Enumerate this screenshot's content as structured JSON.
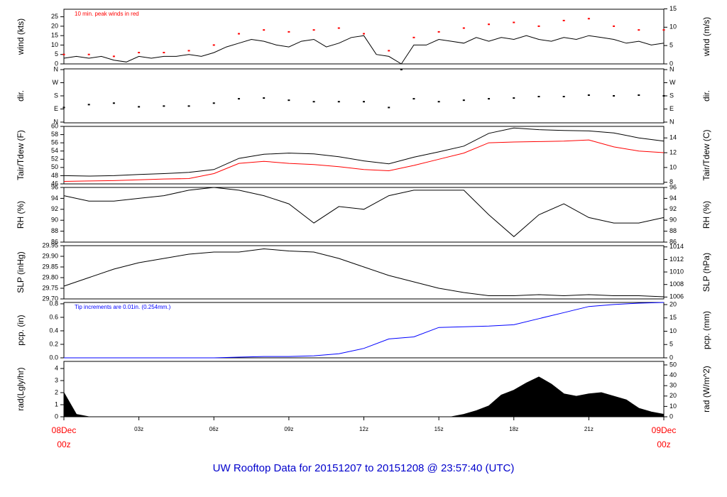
{
  "title": "UW Rooftop Data for 20151207  to  20151208 @ 23:57:40  (UTC)",
  "chart_data": [
    {
      "type": "line",
      "ylabel": "wind (kts)",
      "y2label": "wind (m/s)",
      "annotation": "10 min. peak winds in red",
      "xlim": [
        0,
        24
      ],
      "x": [
        0,
        0.5,
        1,
        1.5,
        2,
        2.5,
        3,
        3.5,
        4,
        4.5,
        5,
        5.5,
        6,
        6.5,
        7,
        7.5,
        8,
        8.5,
        9,
        9.5,
        10,
        10.5,
        11,
        11.5,
        12,
        12.5,
        13,
        13.5,
        14,
        14.5,
        15,
        15.5,
        16,
        16.5,
        17,
        17.5,
        18,
        18.5,
        19,
        19.5,
        20,
        20.5,
        21,
        21.5,
        22,
        22.5,
        23,
        23.5,
        24
      ],
      "ylim": [
        0,
        29
      ],
      "yticks": [
        0,
        5,
        10,
        15,
        20,
        25
      ],
      "y2lim": [
        0,
        14.9
      ],
      "y2ticks": [
        0,
        5,
        10,
        15
      ],
      "series": [
        {
          "color": "#000000",
          "mark": "line",
          "values": [
            3,
            4,
            3,
            4,
            2,
            1,
            4,
            3,
            4,
            4,
            5,
            4,
            6,
            9,
            11,
            13,
            12,
            10,
            9,
            12,
            13,
            9,
            11,
            14,
            15,
            5,
            4,
            0,
            10,
            10,
            13,
            12,
            11,
            14,
            12,
            14,
            13,
            15,
            13,
            12,
            14,
            13,
            15,
            14,
            13,
            11,
            12,
            10,
            11
          ]
        },
        {
          "color": "#ff0000",
          "mark": "points",
          "x": [
            0,
            1,
            2,
            3,
            4,
            5,
            6,
            7,
            8,
            9,
            10,
            11,
            12,
            13,
            14,
            15,
            16,
            17,
            18,
            19,
            20,
            21,
            22,
            23,
            24
          ],
          "values": [
            5,
            5,
            4,
            6,
            6,
            7,
            10,
            16,
            18,
            17,
            18,
            19,
            16,
            7,
            14,
            17,
            19,
            21,
            22,
            20,
            23,
            24,
            20,
            18,
            18
          ]
        }
      ]
    },
    {
      "type": "scatter",
      "ylabel": "dir.",
      "y2label": "dir.",
      "xlim": [
        0,
        24
      ],
      "x": [
        0,
        1,
        2,
        3,
        4,
        5,
        6,
        7,
        8,
        9,
        10,
        11,
        12,
        13,
        13.5,
        14,
        15,
        16,
        17,
        18,
        19,
        20,
        21,
        22,
        23,
        24
      ],
      "ylim": [
        -5,
        365
      ],
      "yticks": [
        {
          "value": 0,
          "label": "N"
        },
        {
          "value": 90,
          "label": "E"
        },
        {
          "value": 180,
          "label": "S"
        },
        {
          "value": 270,
          "label": "W"
        },
        {
          "value": 360,
          "label": "N"
        }
      ],
      "y2lim": [
        -5,
        365
      ],
      "y2ticks": [
        {
          "value": 0,
          "label": "N"
        },
        {
          "value": 90,
          "label": "E"
        },
        {
          "value": 180,
          "label": "S"
        },
        {
          "value": 270,
          "label": "W"
        },
        {
          "value": 360,
          "label": "N"
        }
      ],
      "series": [
        {
          "color": "#000000",
          "mark": "points",
          "values": [
            100,
            120,
            130,
            105,
            110,
            110,
            130,
            160,
            165,
            150,
            140,
            140,
            140,
            100,
            360,
            160,
            140,
            150,
            160,
            165,
            175,
            175,
            185,
            180,
            185,
            180
          ]
        }
      ]
    },
    {
      "type": "line",
      "ylabel": "Tair/Tdew (F)",
      "y2label": "Tair/Tdew (C)",
      "xlim": [
        0,
        24
      ],
      "x": [
        0,
        1,
        2,
        3,
        4,
        5,
        6,
        7,
        8,
        9,
        10,
        11,
        12,
        13,
        14,
        15,
        16,
        17,
        18,
        19,
        20,
        21,
        22,
        23,
        24
      ],
      "ylim": [
        46,
        60
      ],
      "yticks": [
        46,
        48,
        50,
        52,
        54,
        56,
        58,
        60
      ],
      "y2lim": [
        7.78,
        15.56
      ],
      "y2ticks": [
        8,
        10,
        12,
        14
      ],
      "series": [
        {
          "color": "#000000",
          "mark": "line",
          "values": [
            48,
            47.9,
            48,
            48.3,
            48.5,
            48.8,
            49.5,
            52.2,
            53.2,
            53.5,
            53.3,
            52.6,
            51.6,
            50.9,
            52.5,
            53.8,
            55.2,
            58.3,
            59.6,
            59.2,
            59,
            58.9,
            58.4,
            57.2,
            56.4
          ]
        },
        {
          "color": "#ff0000",
          "mark": "line",
          "values": [
            46.6,
            46.7,
            46.8,
            47,
            47.2,
            47.3,
            48.5,
            51,
            51.5,
            51,
            50.7,
            50.2,
            49.5,
            49.2,
            50.5,
            52,
            53.5,
            56,
            56.2,
            56.3,
            56.4,
            56.7,
            55,
            54,
            53.6
          ]
        }
      ]
    },
    {
      "type": "line",
      "ylabel": "RH (%)",
      "y2label": "RH (%)",
      "xlim": [
        0,
        24
      ],
      "x": [
        0,
        1,
        2,
        3,
        4,
        5,
        6,
        7,
        8,
        9,
        10,
        11,
        12,
        13,
        14,
        15,
        16,
        17,
        18,
        19,
        20,
        21,
        22,
        23,
        24
      ],
      "ylim": [
        86,
        96
      ],
      "yticks": [
        86,
        88,
        90,
        92,
        94,
        96
      ],
      "y2lim": [
        86,
        96
      ],
      "y2ticks": [
        86,
        88,
        90,
        92,
        94,
        96
      ],
      "series": [
        {
          "color": "#000000",
          "mark": "line",
          "values": [
            94.5,
            93.5,
            93.5,
            94,
            94.5,
            95.5,
            96,
            95.5,
            94.5,
            93,
            89.5,
            92.5,
            92,
            94.5,
            95.5,
            95.5,
            95.5,
            91,
            87,
            91,
            93,
            90.5,
            89.5,
            89.5,
            90.5
          ]
        }
      ]
    },
    {
      "type": "line",
      "ylabel": "SLP (inHg)",
      "y2label": "SLP (hPa)",
      "xlim": [
        0,
        24
      ],
      "x": [
        0,
        1,
        2,
        3,
        4,
        5,
        6,
        7,
        8,
        9,
        10,
        11,
        12,
        13,
        14,
        15,
        16,
        17,
        18,
        19,
        20,
        21,
        22,
        23,
        24
      ],
      "ylim": [
        29.7,
        29.95
      ],
      "yticks": [
        {
          "value": 29.7,
          "label": "29.70"
        },
        {
          "value": 29.75,
          "label": "29.75"
        },
        {
          "value": 29.8,
          "label": "29.80"
        },
        {
          "value": 29.85,
          "label": "29.85"
        },
        {
          "value": 29.9,
          "label": "29.90"
        },
        {
          "value": 29.95,
          "label": "29.95"
        }
      ],
      "y2lim": [
        1005.7,
        1014.2
      ],
      "y2ticks": [
        1006,
        1008,
        1010,
        1012,
        1014
      ],
      "series": [
        {
          "color": "#000000",
          "mark": "line",
          "values": [
            29.76,
            29.8,
            29.84,
            29.87,
            29.89,
            29.91,
            29.92,
            29.92,
            29.935,
            29.925,
            29.92,
            29.89,
            29.85,
            29.81,
            29.78,
            29.75,
            29.73,
            29.715,
            29.715,
            29.72,
            29.715,
            29.72,
            29.715,
            29.715,
            29.71
          ]
        }
      ]
    },
    {
      "type": "line",
      "ylabel": "pcp. (in)",
      "y2label": "pcp. (mm)",
      "annotation": "Tip increments are 0.01in. (0.254mm.)",
      "xlim": [
        0,
        24
      ],
      "x": [
        0,
        1,
        2,
        3,
        4,
        5,
        6,
        7,
        8,
        9,
        10,
        11,
        12,
        13,
        14,
        15,
        16,
        17,
        18,
        19,
        20,
        21,
        22,
        23,
        24
      ],
      "ylim": [
        0,
        0.82
      ],
      "yticks": [
        {
          "value": 0,
          "label": "0.0"
        },
        0.2,
        0.4,
        0.6,
        0.8
      ],
      "y2lim": [
        0,
        20.8
      ],
      "y2ticks": [
        0,
        5,
        10,
        15,
        20
      ],
      "series": [
        {
          "color": "#0000ff",
          "mark": "line",
          "values": [
            0,
            0,
            0,
            0,
            0,
            0,
            0,
            0.01,
            0.02,
            0.02,
            0.03,
            0.06,
            0.14,
            0.28,
            0.31,
            0.45,
            0.46,
            0.47,
            0.49,
            0.58,
            0.67,
            0.76,
            0.79,
            0.81,
            0.82
          ]
        }
      ]
    },
    {
      "type": "area",
      "ylabel": "rad(Lgly/hr)",
      "y2label": "rad (W/m^2)",
      "xlim": [
        0,
        24
      ],
      "x": [
        0,
        0.5,
        1,
        1.5,
        2,
        2.5,
        3,
        3.5,
        4,
        4.5,
        5,
        5.5,
        6,
        6.5,
        7,
        7.5,
        8,
        8.5,
        9,
        9.5,
        10,
        10.5,
        11,
        11.5,
        12,
        12.5,
        13,
        13.5,
        14,
        14.5,
        15,
        15.5,
        16,
        16.5,
        17,
        17.5,
        18,
        18.5,
        19,
        19.5,
        20,
        20.5,
        21,
        21.5,
        22,
        22.5,
        23,
        23.5,
        24
      ],
      "ylim": [
        0,
        4.59
      ],
      "yticks": [
        0,
        1,
        2,
        3,
        4
      ],
      "y2lim": [
        0,
        53.4
      ],
      "y2ticks": [
        0,
        10,
        20,
        30,
        40,
        50
      ],
      "xticks": [
        {
          "value": 0,
          "label": [
            "08Dec",
            "00z"
          ]
        },
        {
          "value": 3,
          "label": "03z"
        },
        {
          "value": 6,
          "label": "06z"
        },
        {
          "value": 9,
          "label": "09z"
        },
        {
          "value": 12,
          "label": "12z"
        },
        {
          "value": 15,
          "label": "15z"
        },
        {
          "value": 18,
          "label": "18z"
        },
        {
          "value": 21,
          "label": "21z"
        },
        {
          "value": 24,
          "label": [
            "09Dec",
            "00z"
          ]
        }
      ],
      "series": [
        {
          "color": "#000000",
          "mark": "area",
          "values": [
            2.0,
            0.2,
            0,
            0,
            0,
            0,
            0,
            0,
            0,
            0,
            0,
            0,
            0,
            0,
            0,
            0,
            0,
            0,
            0,
            0,
            0,
            0,
            0,
            0,
            0,
            0,
            0,
            0,
            0,
            0,
            0,
            0,
            0.2,
            0.5,
            0.9,
            1.8,
            2.2,
            2.8,
            3.3,
            2.7,
            1.9,
            1.7,
            1.9,
            2.0,
            1.7,
            1.4,
            0.7,
            0.4,
            0.2
          ]
        }
      ]
    }
  ]
}
